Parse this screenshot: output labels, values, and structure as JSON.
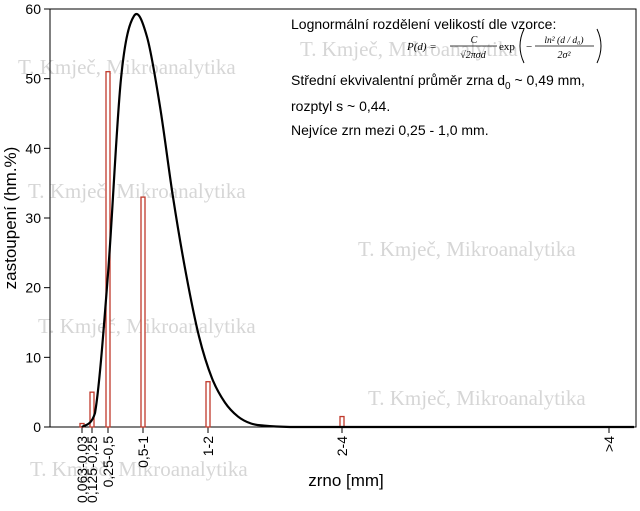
{
  "chart_data": {
    "type": "bar",
    "categories": [
      "0,063-0,03",
      "0,125-0,25",
      "0,25-0,5",
      "0,5-1",
      "1-2",
      "2-4",
      ">4"
    ],
    "values": [
      0.5,
      5,
      51,
      33,
      6.5,
      1.5,
      0
    ],
    "curve": {
      "name": "Lognormální rozdělení",
      "x": [
        0.0,
        0.25,
        0.5,
        0.75,
        1.0,
        1.25,
        1.5,
        1.75,
        2.0,
        2.25,
        2.5,
        2.75,
        3.0,
        3.25,
        3.5,
        4.0,
        4.5,
        5.0
      ],
      "y": [
        0,
        2,
        22,
        50,
        59,
        56,
        46,
        33,
        22,
        13,
        7,
        3.5,
        1.5,
        0.5,
        0.2,
        0,
        0,
        0
      ]
    },
    "xlabel": "zrno [mm]",
    "ylabel": "zastoupení (hm.%)",
    "ylim": [
      0,
      60
    ],
    "yticks": [
      0,
      10,
      20,
      30,
      40,
      50,
      60
    ],
    "grid": false,
    "bar_color": "#c0392b",
    "curve_color": "#000000",
    "annotation": {
      "heading": "Lognormální rozdělení velikostí dle vzorce:",
      "line1": "Střední ekvivalentní průměr zrna d",
      "line1_sub": "0",
      "line1_end": " ~ 0,49 mm,",
      "line2": "rozptyl s ~ 0,44.",
      "line3": "Nejvíce zrn mezi 0,25 - 1,0 mm."
    },
    "formula": {
      "lhs": "P(d) =",
      "numerator": "C",
      "denominator": "√2πσd",
      "exp": "exp",
      "exp_numerator": "ln² (d / d₀)",
      "exp_denominator": "2σ²",
      "minus": "−"
    },
    "watermark": "T. Kmječ, Mikroanalytika"
  }
}
